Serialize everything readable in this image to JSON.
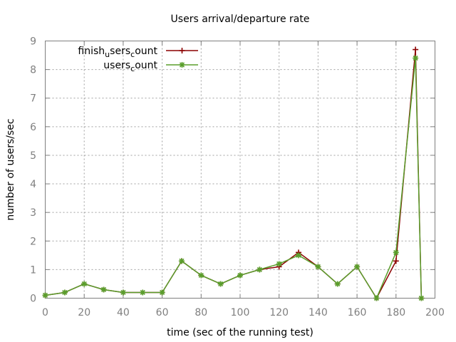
{
  "chart_data": {
    "type": "line",
    "title": "Users arrival/departure rate",
    "xlabel": "time (sec of the running test)",
    "ylabel": "number of users/sec",
    "xlim": [
      0,
      200
    ],
    "ylim": [
      0,
      9
    ],
    "xticks": [
      0,
      20,
      40,
      60,
      80,
      100,
      120,
      140,
      160,
      180,
      200
    ],
    "yticks": [
      0,
      1,
      2,
      3,
      4,
      5,
      6,
      7,
      8,
      9
    ],
    "grid": true,
    "legend_position": "top-right",
    "series": [
      {
        "name": "finish_users_count",
        "legend_main": [
          "finish",
          "sers",
          "ount"
        ],
        "legend_sub": [
          "u",
          "c"
        ],
        "color": "#8b0000",
        "marker": "plus",
        "x": [
          0,
          10,
          20,
          30,
          40,
          50,
          60,
          70,
          80,
          90,
          100,
          110,
          120,
          130,
          140,
          150,
          160,
          170,
          180,
          190,
          193
        ],
        "y": [
          0.1,
          0.2,
          0.5,
          0.3,
          0.2,
          0.2,
          0.2,
          1.3,
          0.8,
          0.5,
          0.8,
          1.0,
          1.1,
          1.6,
          1.1,
          0.5,
          1.1,
          0.0,
          1.3,
          8.7,
          0.0
        ]
      },
      {
        "name": "users_count",
        "legend_main": [
          "users",
          "ount"
        ],
        "legend_sub": [
          "c"
        ],
        "color": "#5a9e2c",
        "marker": "star",
        "x": [
          0,
          10,
          20,
          30,
          40,
          50,
          60,
          70,
          80,
          90,
          100,
          110,
          120,
          130,
          140,
          150,
          160,
          170,
          180,
          190,
          193
        ],
        "y": [
          0.1,
          0.2,
          0.5,
          0.3,
          0.2,
          0.2,
          0.2,
          1.3,
          0.8,
          0.5,
          0.8,
          1.0,
          1.2,
          1.5,
          1.1,
          0.5,
          1.1,
          0.0,
          1.6,
          8.4,
          0.0
        ]
      }
    ]
  }
}
